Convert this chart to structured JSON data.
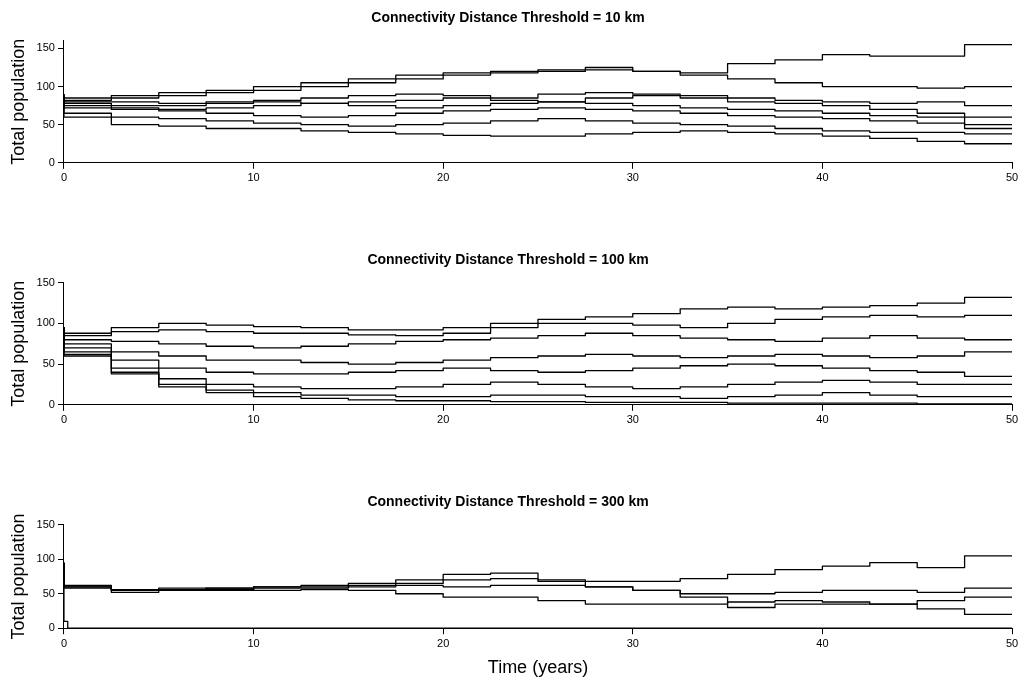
{
  "chart_data": [
    {
      "type": "step",
      "title": "Connectivity Distance Threshold = 10 km",
      "ylabel": "Total population",
      "xlim": [
        0,
        50
      ],
      "xticks": [
        0,
        10,
        20,
        30,
        40,
        50
      ],
      "ylim": [
        0,
        160
      ],
      "yticks": [
        0,
        50,
        100,
        150
      ],
      "marker": "none",
      "line_style": "solid",
      "x": [
        0,
        2.5,
        5,
        7.5,
        10,
        12.5,
        15,
        17.5,
        20,
        22.5,
        25,
        27.5,
        30,
        32.5,
        35,
        37.5,
        40,
        42.5,
        45,
        47.5,
        50
      ],
      "series": [
        {
          "color": "#000000",
          "values": [
            90,
            85,
            88,
            92,
            95,
            100,
            105,
            110,
            115,
            118,
            120,
            122,
            125,
            120,
            118,
            130,
            135,
            142,
            140,
            140,
            155
          ]
        },
        {
          "color": "#000000",
          "values": [
            90,
            82,
            85,
            88,
            92,
            95,
            100,
            105,
            110,
            115,
            118,
            120,
            122,
            120,
            115,
            110,
            105,
            100,
            100,
            98,
            100
          ]
        },
        {
          "color": "#000000",
          "values": [
            90,
            80,
            80,
            78,
            80,
            82,
            85,
            88,
            90,
            88,
            85,
            90,
            92,
            90,
            88,
            85,
            82,
            80,
            78,
            80,
            75
          ]
        },
        {
          "color": "#000000",
          "values": [
            88,
            78,
            75,
            75,
            78,
            80,
            78,
            75,
            72,
            75,
            78,
            80,
            78,
            75,
            72,
            70,
            68,
            65,
            62,
            60,
            60
          ]
        },
        {
          "color": "#000000",
          "values": [
            85,
            72,
            70,
            68,
            65,
            62,
            60,
            62,
            65,
            68,
            70,
            72,
            70,
            68,
            65,
            62,
            60,
            58,
            55,
            52,
            50
          ]
        },
        {
          "color": "#000000",
          "values": [
            85,
            65,
            60,
            58,
            55,
            52,
            50,
            48,
            50,
            52,
            55,
            58,
            55,
            52,
            50,
            48,
            45,
            42,
            40,
            40,
            38
          ]
        },
        {
          "color": "#000000",
          "values": [
            82,
            60,
            50,
            48,
            45,
            45,
            42,
            40,
            38,
            36,
            35,
            35,
            38,
            40,
            42,
            40,
            38,
            35,
            32,
            28,
            25
          ]
        },
        {
          "color": "#000000",
          "values": [
            88,
            75,
            72,
            70,
            72,
            75,
            78,
            80,
            82,
            85,
            82,
            80,
            85,
            88,
            85,
            80,
            78,
            75,
            70,
            65,
            45
          ]
        }
      ]
    },
    {
      "type": "step",
      "title": "Connectivity Distance Threshold = 100 km",
      "ylabel": "Total population",
      "xlim": [
        0,
        50
      ],
      "xticks": [
        0,
        10,
        20,
        30,
        40,
        50
      ],
      "ylim": [
        0,
        150
      ],
      "yticks": [
        0,
        50,
        100,
        150
      ],
      "marker": "none",
      "line_style": "solid",
      "x": [
        0,
        2.5,
        5,
        7.5,
        10,
        12.5,
        15,
        17.5,
        20,
        22.5,
        25,
        27.5,
        30,
        32.5,
        35,
        37.5,
        40,
        42.5,
        45,
        47.5,
        50
      ],
      "series": [
        {
          "color": "#000000",
          "values": [
            95,
            88,
            95,
            100,
            98,
            96,
            95,
            92,
            92,
            95,
            100,
            105,
            108,
            112,
            118,
            120,
            118,
            120,
            122,
            125,
            132
          ]
        },
        {
          "color": "#000000",
          "values": [
            95,
            85,
            90,
            92,
            90,
            88,
            88,
            86,
            85,
            88,
            95,
            100,
            100,
            98,
            95,
            100,
            105,
            108,
            110,
            108,
            110
          ]
        },
        {
          "color": "#000000",
          "values": [
            95,
            80,
            78,
            75,
            72,
            70,
            72,
            75,
            78,
            80,
            82,
            85,
            88,
            85,
            82,
            80,
            78,
            82,
            85,
            82,
            80
          ]
        },
        {
          "color": "#000000",
          "values": [
            95,
            75,
            65,
            60,
            55,
            55,
            52,
            50,
            52,
            55,
            58,
            60,
            62,
            60,
            58,
            60,
            62,
            60,
            58,
            60,
            65
          ]
        },
        {
          "color": "#000000",
          "values": [
            95,
            70,
            55,
            45,
            40,
            38,
            38,
            40,
            42,
            45,
            42,
            40,
            42,
            45,
            48,
            50,
            48,
            45,
            42,
            40,
            35
          ]
        },
        {
          "color": "#000000",
          "values": [
            95,
            65,
            45,
            32,
            25,
            22,
            20,
            20,
            22,
            25,
            28,
            25,
            22,
            20,
            22,
            25,
            28,
            30,
            28,
            25,
            25
          ]
        },
        {
          "color": "#000000",
          "values": [
            95,
            62,
            40,
            25,
            18,
            15,
            12,
            12,
            10,
            10,
            12,
            12,
            10,
            10,
            8,
            10,
            12,
            15,
            12,
            10,
            10
          ]
        },
        {
          "color": "#000000",
          "values": [
            95,
            60,
            38,
            22,
            15,
            10,
            8,
            6,
            5,
            5,
            4,
            4,
            3,
            3,
            3,
            2,
            2,
            2,
            2,
            1,
            1
          ]
        }
      ]
    },
    {
      "type": "step",
      "title": "Connectivity Distance Threshold = 300 km",
      "xlabel": "Time (years)",
      "ylabel": "Total population",
      "xlim": [
        0,
        50
      ],
      "xticks": [
        0,
        10,
        20,
        30,
        40,
        50
      ],
      "ylim": [
        0,
        150
      ],
      "yticks": [
        0,
        50,
        100,
        150
      ],
      "marker": "none",
      "line_style": "solid",
      "x": [
        0,
        2.5,
        5,
        7.5,
        10,
        12.5,
        15,
        17.5,
        20,
        22.5,
        25,
        27.5,
        30,
        32.5,
        35,
        37.5,
        40,
        42.5,
        45,
        47.5,
        50
      ],
      "series": [
        {
          "color": "#000000",
          "values": [
            95,
            62,
            55,
            58,
            56,
            60,
            60,
            62,
            65,
            70,
            72,
            70,
            68,
            68,
            72,
            78,
            85,
            90,
            95,
            88,
            105
          ]
        },
        {
          "color": "#000000",
          "values": [
            95,
            60,
            56,
            55,
            58,
            60,
            62,
            65,
            70,
            78,
            80,
            68,
            60,
            55,
            50,
            50,
            52,
            55,
            55,
            52,
            58
          ]
        },
        {
          "color": "#000000",
          "values": [
            95,
            60,
            55,
            56,
            55,
            58,
            58,
            60,
            62,
            60,
            62,
            62,
            60,
            55,
            45,
            30,
            35,
            35,
            35,
            40,
            45
          ]
        },
        {
          "color": "#000000",
          "values": [
            95,
            58,
            52,
            55,
            58,
            55,
            56,
            55,
            50,
            45,
            45,
            40,
            35,
            35,
            35,
            38,
            40,
            38,
            35,
            28,
            20
          ]
        },
        {
          "color": "#000000",
          "x": [
            0,
            0.2,
            0.4,
            50
          ],
          "values": [
            95,
            10,
            0,
            0
          ]
        }
      ]
    }
  ]
}
